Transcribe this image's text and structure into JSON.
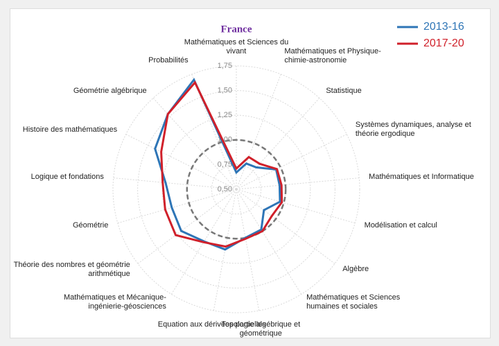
{
  "chart_data": {
    "type": "radar",
    "title": "France",
    "categories": [
      "Mathématiques et Sciences du vivant",
      "Mathématiques et Physique-chimie-astronomie",
      "Statistique",
      "Systèmes dynamiques, analyse et théorie ergodique",
      "Mathématiques et Informatique",
      "Modélisation et calcul",
      "Algèbre",
      "Mathématiques et Sciences humaines et sociales",
      "Topologie algébrique et géométrique",
      "Equation aux dérivées partielles",
      "Mathématiques et Mécanique-ingénierie-géosciences",
      "Théorie des nombres et géométrie arithmétique",
      "Géométrie",
      "Logique et fondations",
      "Histoire des mathématiques",
      "Géométrie algébrique",
      "Probabilités"
    ],
    "series": [
      {
        "name": "2013-16",
        "color": "#2e75b6",
        "values": [
          0.67,
          0.78,
          0.8,
          0.95,
          0.94,
          0.96,
          0.85,
          0.98,
          1.0,
          1.12,
          1.12,
          1.2,
          1.18,
          1.22,
          1.42,
          1.53,
          1.69
        ]
      },
      {
        "name": "2017-20",
        "color": "#d0202a",
        "values": [
          0.71,
          0.85,
          0.85,
          0.96,
          0.96,
          0.98,
          0.95,
          1.0,
          1.01,
          1.09,
          1.13,
          1.27,
          1.25,
          1.25,
          1.35,
          1.53,
          1.66
        ]
      }
    ],
    "ylim": [
      0.5,
      1.75
    ],
    "yticks": [
      {
        "value": 0.5,
        "label": "0,50"
      },
      {
        "value": 0.75,
        "label": "0,75"
      },
      {
        "value": 1.0,
        "label": "1,00"
      },
      {
        "value": 1.25,
        "label": "1,25"
      },
      {
        "value": 1.5,
        "label": "1,50"
      },
      {
        "value": 1.75,
        "label": "1,75"
      }
    ],
    "reference": 1.0,
    "grid": true,
    "legend": "upper right"
  }
}
